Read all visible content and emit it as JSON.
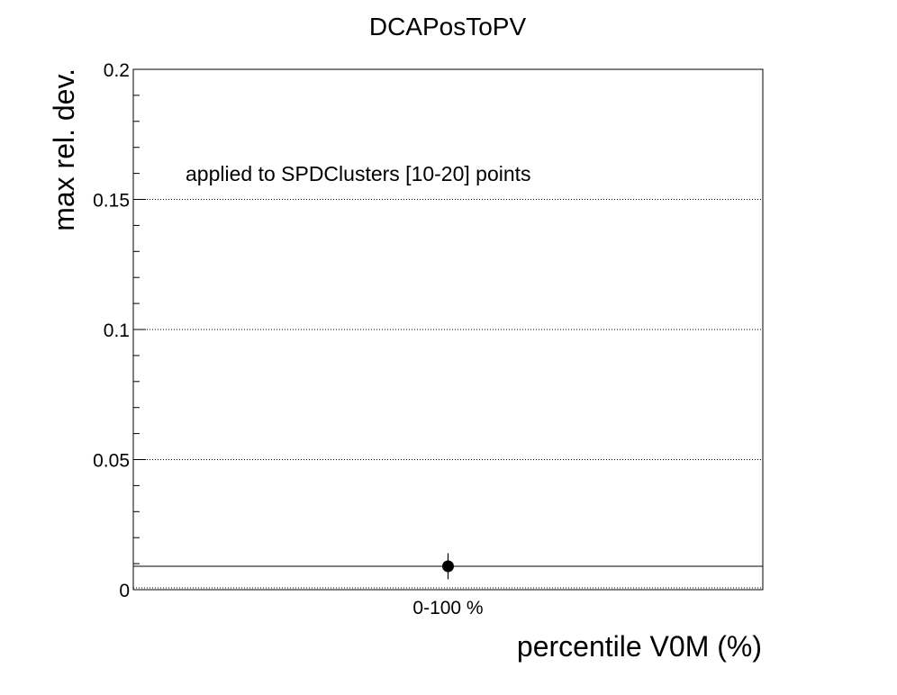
{
  "chart_data": {
    "type": "scatter",
    "title": "DCAPosToPV",
    "xlabel": "percentile V0M (%)",
    "ylabel": "max rel. dev.",
    "categories": [
      "0-100 %"
    ],
    "series": [
      {
        "values": [
          0.009
        ],
        "errors": [
          0.005
        ]
      }
    ],
    "reference_line": 0.009,
    "ylim": [
      0,
      0.2
    ],
    "yticks": [
      {
        "value": 0,
        "label": "0"
      },
      {
        "value": 0.05,
        "label": "0.05"
      },
      {
        "value": 0.1,
        "label": "0.1"
      },
      {
        "value": 0.15,
        "label": "0.15"
      },
      {
        "value": 0.2,
        "label": "0.2"
      }
    ],
    "annotation": "applied to SPDClusters [10-20] points",
    "grid": "horizontal dotted",
    "legend": "none"
  },
  "colors": {
    "axis": "#000000",
    "marker": "#000000",
    "grid": "#000000",
    "background": "#ffffff"
  }
}
